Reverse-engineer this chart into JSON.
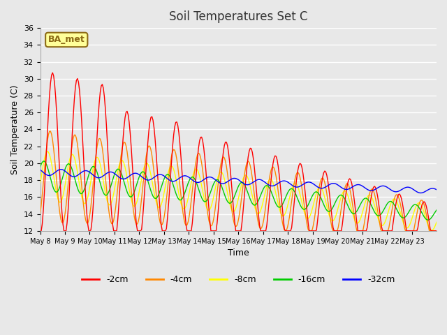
{
  "title": "Soil Temperatures Set C",
  "xlabel": "Time",
  "ylabel": "Soil Temperature (C)",
  "ylim": [
    12,
    36
  ],
  "yticks": [
    12,
    14,
    16,
    18,
    20,
    22,
    24,
    26,
    28,
    30,
    32,
    34,
    36
  ],
  "background_color": "#e8e8e8",
  "plot_bg_color": "#e8e8e8",
  "grid_color": "#ffffff",
  "annotation_text": "BA_met",
  "annotation_bg": "#ffff99",
  "annotation_border": "#8b6914",
  "series_colors": {
    "-2cm": "#ff0000",
    "-4cm": "#ff8800",
    "-8cm": "#ffff00",
    "-16cm": "#00cc00",
    "-32cm": "#0000ff"
  },
  "xtick_labels": [
    "May 8",
    "May 9",
    "May 10",
    "May 11",
    "May 12",
    "May 13",
    "May 14",
    "May 15",
    "May 16",
    "May 17",
    "May 18",
    "May 19",
    "May 20",
    "May 21",
    "May 22",
    "May 23"
  ],
  "n_days": 16,
  "points_per_day": 24
}
